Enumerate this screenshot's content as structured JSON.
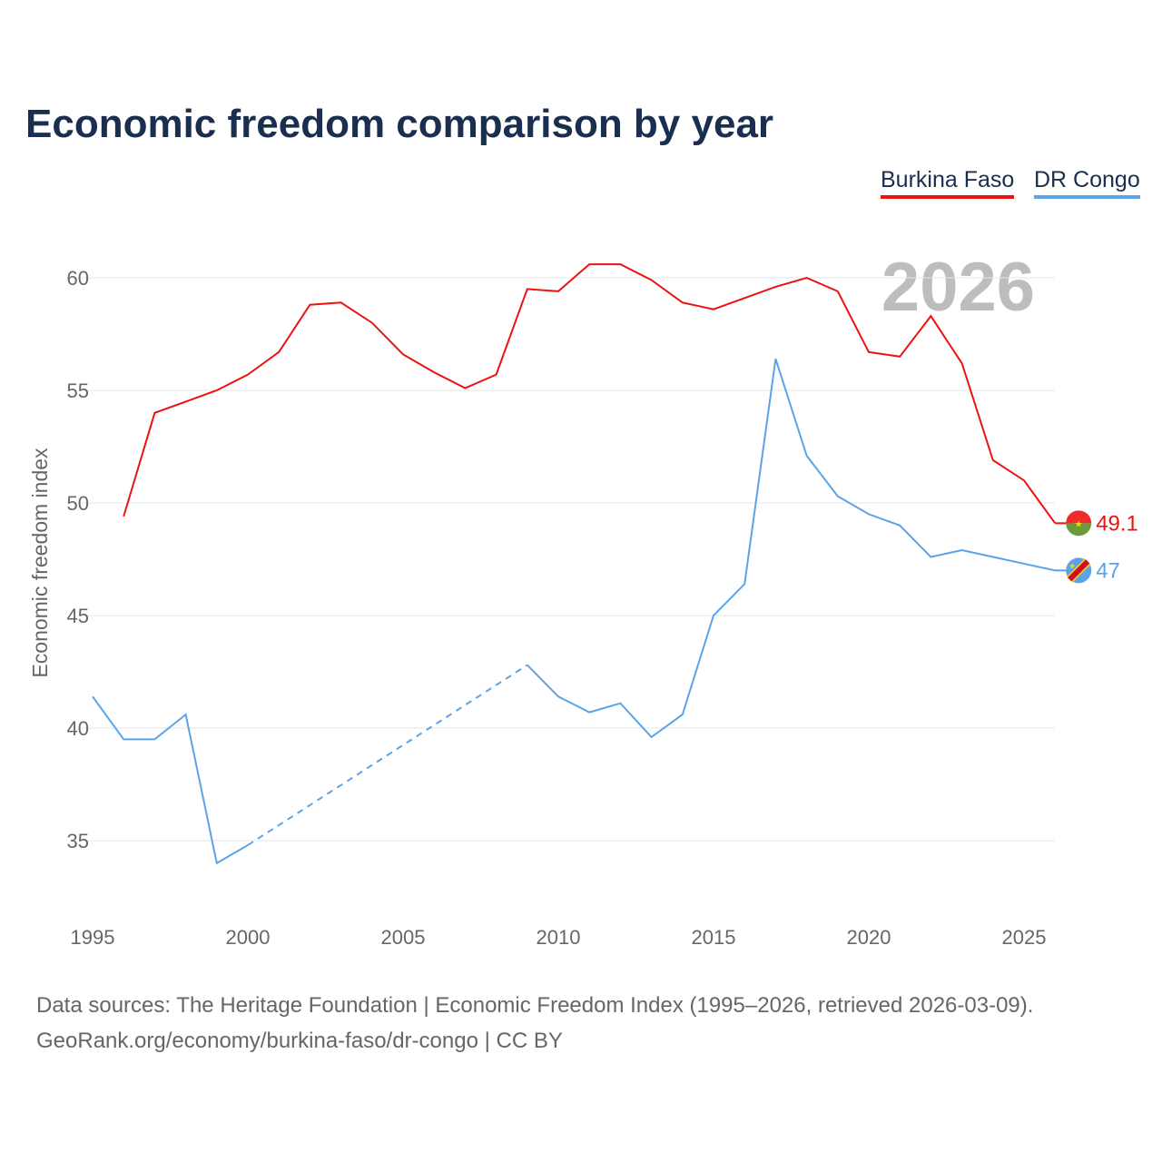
{
  "title": "Economic freedom comparison by year",
  "year_badge": "2026",
  "source_line1": "Data sources: The Heritage Foundation | Economic Freedom Index (1995–2026, retrieved 2026-03-09).",
  "source_line2": "GeoRank.org/economy/burkina-faso/dr-congo | CC BY",
  "chart_data": {
    "type": "line",
    "title": "Economic freedom comparison by year",
    "xlabel": "",
    "ylabel": "Economic freedom index",
    "xlim": [
      1995,
      2026
    ],
    "ylim": [
      32,
      62
    ],
    "x_ticks": [
      1995,
      2000,
      2005,
      2010,
      2015,
      2020,
      2025
    ],
    "y_ticks": [
      35,
      40,
      45,
      50,
      55,
      60
    ],
    "grid": true,
    "legend_position": "top-right",
    "series": [
      {
        "name": "Burkina Faso",
        "color": "#ee1111",
        "end_label": "49.1",
        "x": [
          1996,
          1997,
          1998,
          1999,
          2000,
          2001,
          2002,
          2003,
          2004,
          2005,
          2006,
          2007,
          2008,
          2009,
          2010,
          2011,
          2012,
          2013,
          2014,
          2015,
          2016,
          2017,
          2018,
          2019,
          2020,
          2021,
          2022,
          2023,
          2024,
          2025,
          2026
        ],
        "values": [
          49.4,
          54.0,
          54.5,
          55.0,
          55.7,
          56.7,
          58.8,
          58.9,
          58.0,
          56.6,
          55.8,
          55.1,
          55.7,
          59.5,
          59.4,
          60.6,
          60.6,
          59.9,
          58.9,
          58.6,
          59.1,
          59.6,
          60.0,
          59.4,
          56.7,
          56.5,
          58.3,
          56.2,
          51.9,
          51.0,
          49.1
        ]
      },
      {
        "name": "DR Congo",
        "color": "#5ba3e8",
        "end_label": "47",
        "x": [
          1995,
          1996,
          1997,
          1998,
          1999,
          2000,
          2009,
          2010,
          2011,
          2012,
          2013,
          2014,
          2015,
          2016,
          2017,
          2018,
          2019,
          2020,
          2021,
          2022,
          2023,
          2024,
          2025,
          2026
        ],
        "values": [
          41.4,
          39.5,
          39.5,
          40.6,
          34.0,
          34.8,
          42.8,
          41.4,
          40.7,
          41.1,
          39.6,
          40.6,
          45.0,
          46.4,
          56.4,
          52.1,
          50.3,
          49.5,
          49.0,
          47.6,
          47.9,
          47.6,
          47.3,
          47.0
        ],
        "gap_interpolated": [
          2000,
          2009
        ]
      }
    ]
  }
}
